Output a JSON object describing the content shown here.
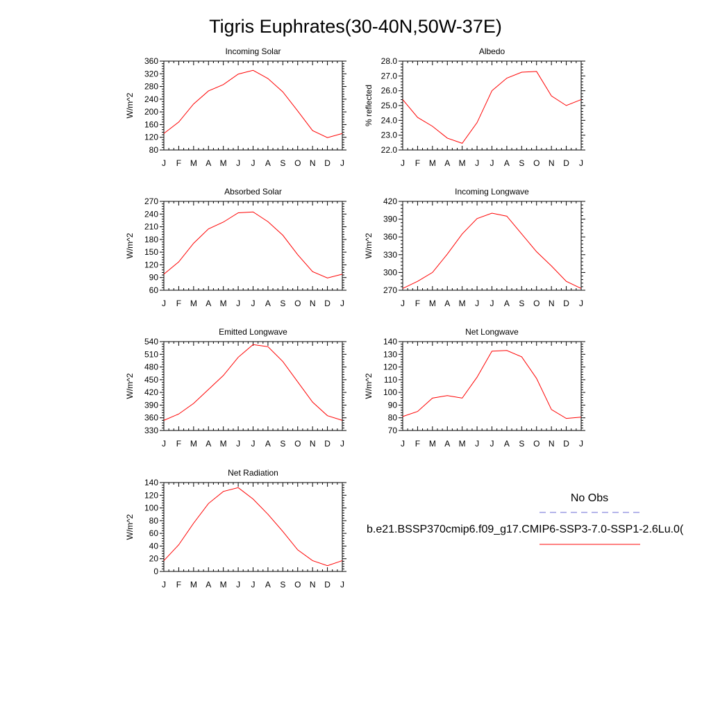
{
  "title": "Tigris Euphrates(30-40N,50W-37E)",
  "colors": {
    "series": "#ff0000",
    "obs": "#6b6bd6",
    "axis": "#000000"
  },
  "legend": {
    "obs_label": "No Obs",
    "model_label": "b.e21.BSSP370cmip6.f09_g17.CMIP6-SSP3-7.0-SSP1-2.6Lu.0("
  },
  "chart_data": [
    {
      "type": "line",
      "title": "Incoming Solar",
      "ylabel": "W/m^2",
      "categories": [
        "J",
        "F",
        "M",
        "A",
        "M",
        "J",
        "J",
        "A",
        "S",
        "O",
        "N",
        "D",
        "J"
      ],
      "ylim": [
        80,
        360
      ],
      "yticks": [
        80,
        120,
        160,
        200,
        240,
        280,
        320,
        360
      ],
      "ydec": 0,
      "values": [
        132,
        168,
        225,
        266,
        286,
        319,
        331,
        305,
        263,
        203,
        141,
        119,
        132
      ]
    },
    {
      "type": "line",
      "title": "Albedo",
      "ylabel": "% reflected",
      "categories": [
        "J",
        "F",
        "M",
        "A",
        "M",
        "J",
        "J",
        "A",
        "S",
        "O",
        "N",
        "D",
        "J"
      ],
      "ylim": [
        22,
        28
      ],
      "yticks": [
        22,
        23,
        24,
        25,
        26,
        27,
        28
      ],
      "ydec": 1,
      "values": [
        25.4,
        24.2,
        23.6,
        22.8,
        22.45,
        23.85,
        26.0,
        26.85,
        27.25,
        27.3,
        25.65,
        25.0,
        25.4
      ]
    },
    {
      "type": "line",
      "title": "Absorbed Solar",
      "ylabel": "W/m^2",
      "categories": [
        "J",
        "F",
        "M",
        "A",
        "M",
        "J",
        "J",
        "A",
        "S",
        "O",
        "N",
        "D",
        "J"
      ],
      "ylim": [
        60,
        270
      ],
      "yticks": [
        60,
        90,
        120,
        150,
        180,
        210,
        240,
        270
      ],
      "ydec": 0,
      "values": [
        98,
        127,
        171,
        205,
        221,
        243,
        245,
        222,
        190,
        144,
        104,
        89,
        98
      ]
    },
    {
      "type": "line",
      "title": "Incoming Longwave",
      "ylabel": "W/m^2",
      "categories": [
        "J",
        "F",
        "M",
        "A",
        "M",
        "J",
        "J",
        "A",
        "S",
        "O",
        "N",
        "D",
        "J"
      ],
      "ylim": [
        270,
        420
      ],
      "yticks": [
        270,
        300,
        330,
        360,
        390,
        420
      ],
      "ydec": 0,
      "values": [
        273,
        285,
        300,
        331,
        365,
        391,
        400,
        395,
        365,
        335,
        311,
        285,
        273
      ]
    },
    {
      "type": "line",
      "title": "Emitted Longwave",
      "ylabel": "W/m^2",
      "categories": [
        "J",
        "F",
        "M",
        "A",
        "M",
        "J",
        "J",
        "A",
        "S",
        "O",
        "N",
        "D",
        "J"
      ],
      "ylim": [
        330,
        540
      ],
      "yticks": [
        330,
        360,
        390,
        420,
        450,
        480,
        510,
        540
      ],
      "ydec": 0,
      "values": [
        354,
        369,
        394,
        427,
        460,
        503,
        533,
        528,
        493,
        445,
        397,
        365,
        354
      ]
    },
    {
      "type": "line",
      "title": "Net Longwave",
      "ylabel": "W/m^2",
      "categories": [
        "J",
        "F",
        "M",
        "A",
        "M",
        "J",
        "J",
        "A",
        "S",
        "O",
        "N",
        "D",
        "J"
      ],
      "ylim": [
        70,
        140
      ],
      "yticks": [
        70,
        80,
        90,
        100,
        110,
        120,
        130,
        140
      ],
      "ydec": 0,
      "values": [
        81,
        85,
        95.5,
        97.5,
        95.5,
        112,
        132.5,
        133,
        128,
        111,
        86.5,
        79.5,
        80.5
      ]
    },
    {
      "type": "line",
      "title": "Net Radiation",
      "ylabel": "W/m^2",
      "categories": [
        "J",
        "F",
        "M",
        "A",
        "M",
        "J",
        "J",
        "A",
        "S",
        "O",
        "N",
        "D",
        "J"
      ],
      "ylim": [
        0,
        140
      ],
      "yticks": [
        0,
        20,
        40,
        60,
        80,
        100,
        120,
        140
      ],
      "ydec": 0,
      "values": [
        17,
        42,
        76,
        107,
        126,
        132,
        114,
        90,
        63,
        34,
        17,
        9,
        17
      ]
    }
  ]
}
